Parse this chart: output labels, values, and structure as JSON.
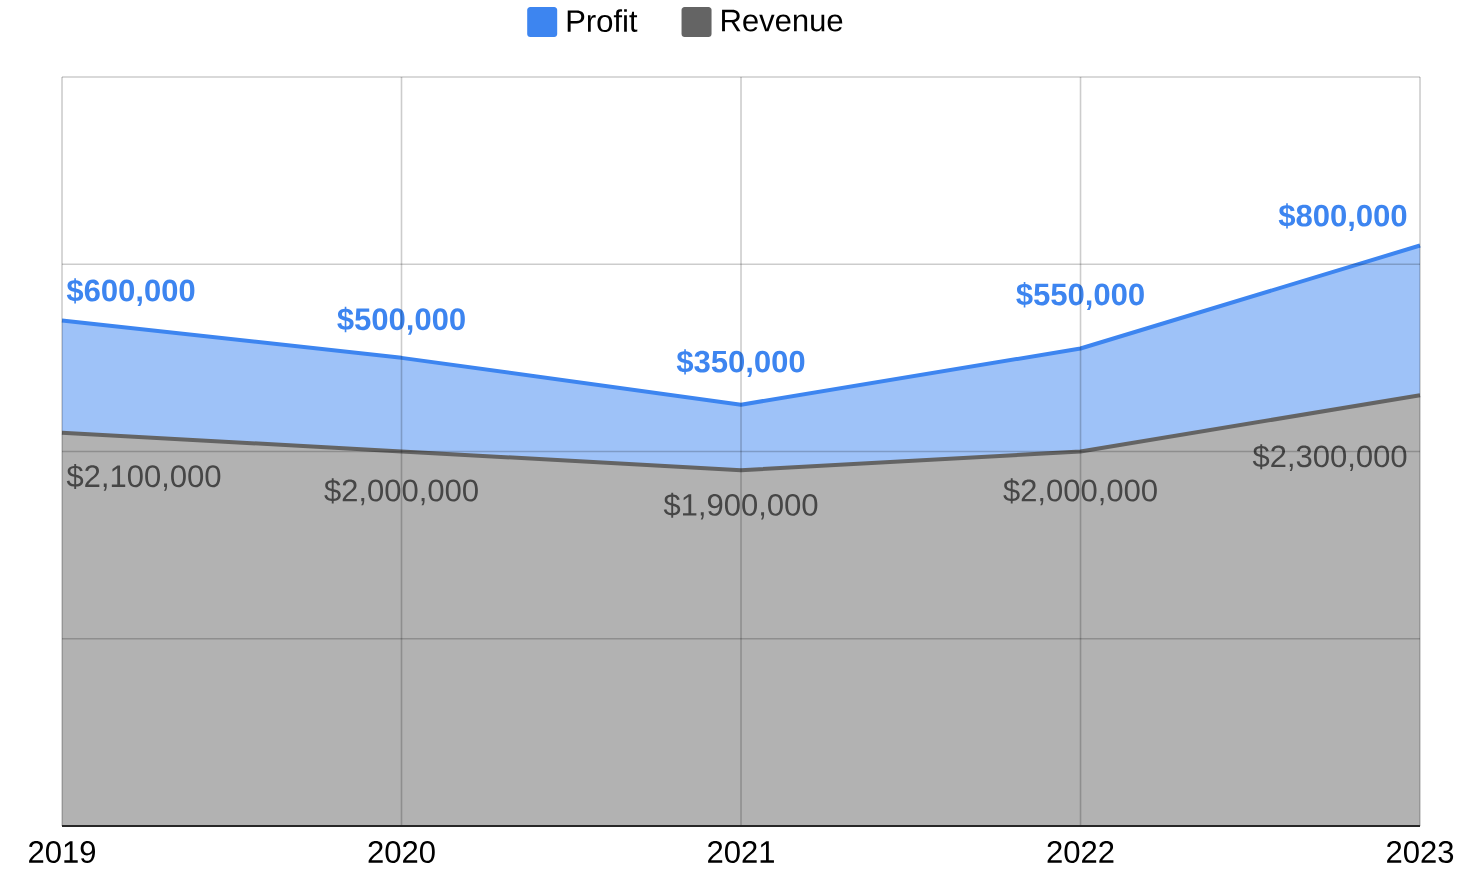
{
  "chart_data": {
    "type": "area",
    "stacked": true,
    "categories": [
      "2019",
      "2020",
      "2021",
      "2022",
      "2023"
    ],
    "series": [
      {
        "name": "Revenue",
        "color": "#646464",
        "values": [
          2100000,
          2000000,
          1900000,
          2000000,
          2300000
        ],
        "value_labels": [
          "$2,100,000",
          "$2,000,000",
          "$1,900,000",
          "$2,000,000",
          "$2,300,000"
        ]
      },
      {
        "name": "Profit",
        "color": "#3d85f0",
        "values": [
          600000,
          500000,
          350000,
          550000,
          800000
        ],
        "value_labels": [
          "$600,000",
          "$500,000",
          "$350,000",
          "$550,000",
          "$800,000"
        ]
      }
    ],
    "ylim": [
      0,
      4000000
    ],
    "tick_labels": "x",
    "grid": true,
    "legend": "top"
  }
}
